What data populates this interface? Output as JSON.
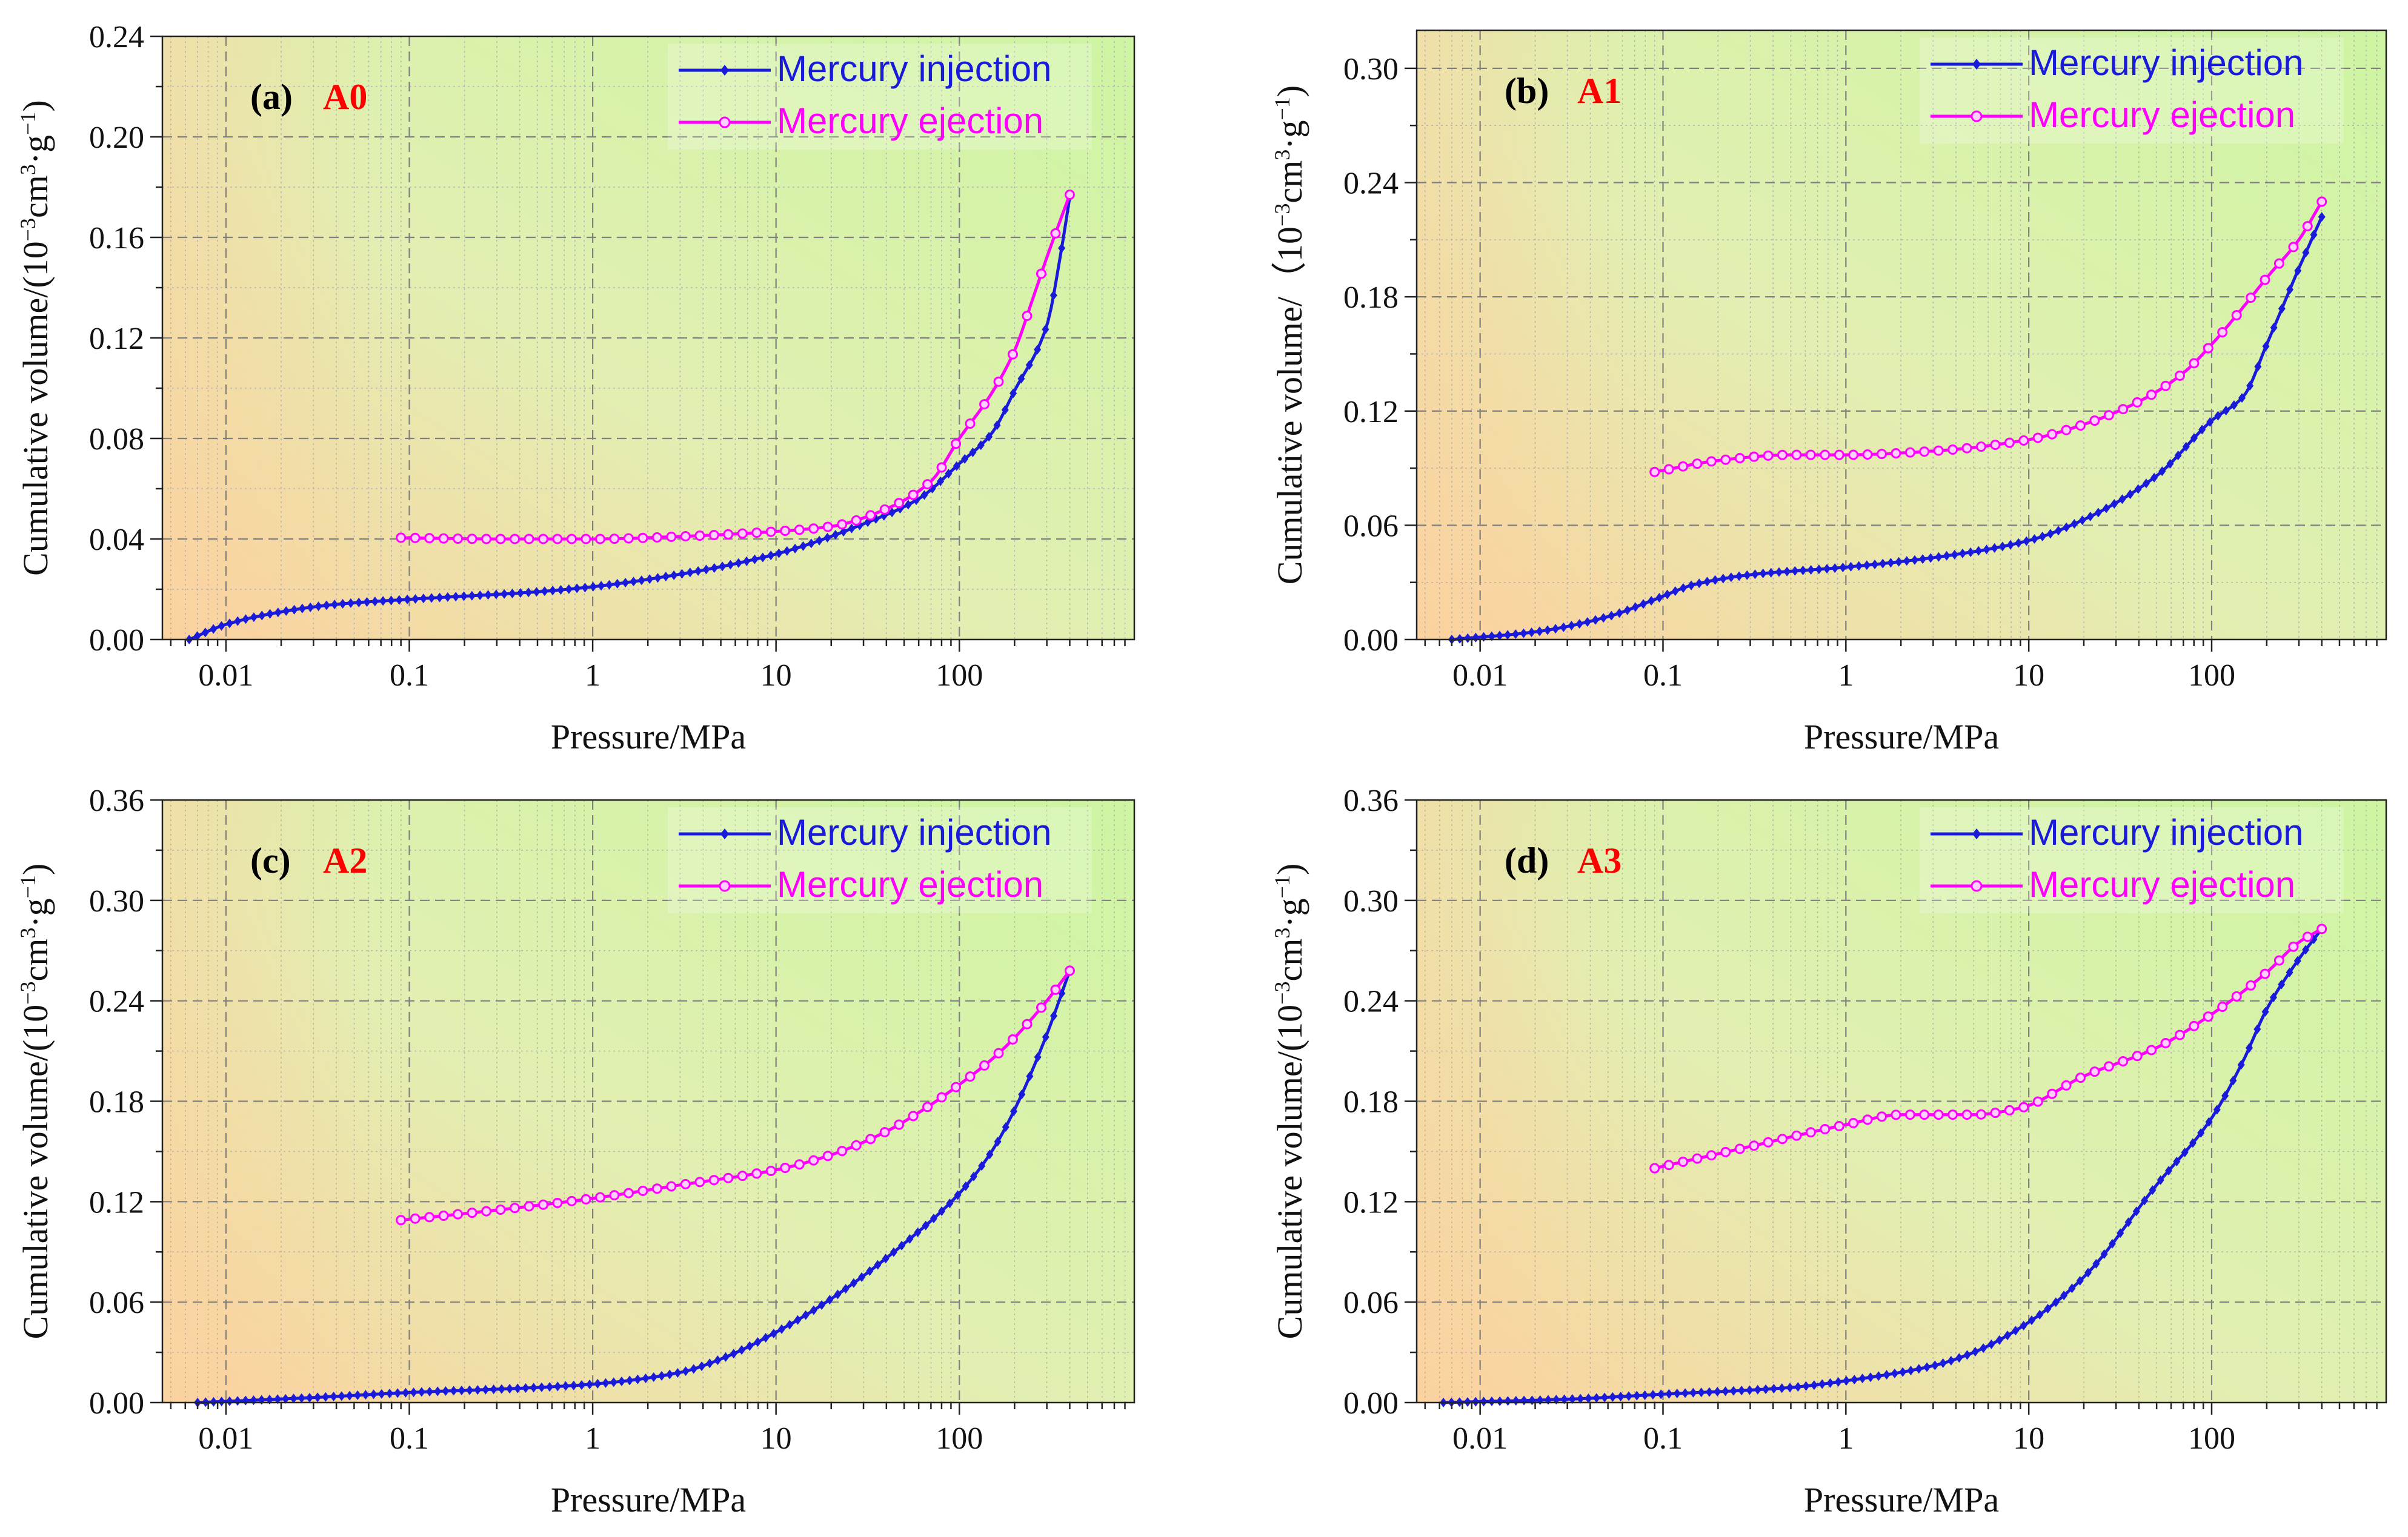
{
  "figure": {
    "panel_ids": [
      "a",
      "b",
      "c",
      "d"
    ]
  },
  "chart_data": [
    {
      "id": "a",
      "type": "line",
      "panel_letter": "(a)",
      "sample": "A0",
      "xlabel": "Pressure/MPa",
      "ylabel": "Cumulative volume/(10⁻³cm³·g⁻¹)",
      "xscale": "log",
      "xlim": [
        0.0045,
        900
      ],
      "ylim": [
        0,
        0.24
      ],
      "xticks": [
        0.01,
        0.1,
        1,
        10,
        100
      ],
      "xtick_labels": [
        "0.01",
        "0.1",
        "1",
        "10",
        "100"
      ],
      "yticks": [
        0,
        0.04,
        0.08,
        0.12,
        0.16,
        0.2,
        0.24
      ],
      "ytick_labels": [
        "0.00",
        "0.04",
        "0.08",
        "0.12",
        "0.16",
        "0.20",
        "0.24"
      ],
      "grid": true,
      "legend_position": "top-right",
      "series": [
        {
          "name": "Mercury injection",
          "color": "#1a1adb",
          "marker": "diamond",
          "points": 110,
          "x": [
            0.0063,
            0.01,
            0.02,
            0.04,
            0.1,
            0.5,
            1,
            3,
            10,
            30,
            60,
            100,
            150,
            200,
            300,
            360,
            400
          ],
          "y": [
            0.0,
            0.006,
            0.011,
            0.014,
            0.016,
            0.019,
            0.021,
            0.026,
            0.034,
            0.046,
            0.056,
            0.07,
            0.082,
            0.099,
            0.125,
            0.155,
            0.176
          ]
        },
        {
          "name": "Mercury ejection",
          "color": "#ff00ff",
          "marker": "circle",
          "points": 48,
          "x": [
            0.09,
            0.3,
            1,
            3,
            10,
            20,
            40,
            70,
            100,
            150,
            200,
            250,
            300,
            400
          ],
          "y": [
            0.0405,
            0.04,
            0.04,
            0.041,
            0.043,
            0.045,
            0.052,
            0.063,
            0.08,
            0.098,
            0.115,
            0.135,
            0.152,
            0.177
          ]
        }
      ]
    },
    {
      "id": "b",
      "type": "line",
      "panel_letter": "(b)",
      "sample": "A1",
      "xlabel": "Pressure/MPa",
      "ylabel": "Cumulative volume/（10⁻³cm³·g⁻¹)",
      "xscale": "log",
      "xlim": [
        0.0045,
        900
      ],
      "ylim": [
        0,
        0.32
      ],
      "xticks": [
        0.01,
        0.1,
        1,
        10,
        100
      ],
      "xtick_labels": [
        "0.01",
        "0.1",
        "1",
        "10",
        "100"
      ],
      "yticks": [
        0,
        0.06,
        0.12,
        0.18,
        0.24,
        0.3
      ],
      "ytick_labels": [
        "0.00",
        "0.06",
        "0.12",
        "0.18",
        "0.24",
        "0.30"
      ],
      "grid": true,
      "legend_position": "top-right",
      "series": [
        {
          "name": "Mercury injection",
          "color": "#1a1adb",
          "marker": "diamond",
          "points": 110,
          "x": [
            0.007,
            0.02,
            0.05,
            0.09,
            0.15,
            0.3,
            1,
            3,
            10,
            20,
            50,
            100,
            150,
            200,
            300,
            400
          ],
          "y": [
            0.0,
            0.004,
            0.012,
            0.021,
            0.029,
            0.034,
            0.038,
            0.043,
            0.052,
            0.063,
            0.086,
            0.115,
            0.128,
            0.155,
            0.195,
            0.222
          ]
        },
        {
          "name": "Mercury ejection",
          "color": "#ff00ff",
          "marker": "circle",
          "points": 48,
          "x": [
            0.09,
            0.2,
            0.5,
            1,
            3,
            10,
            20,
            40,
            70,
            100,
            150,
            200,
            300,
            400
          ],
          "y": [
            0.088,
            0.094,
            0.097,
            0.097,
            0.099,
            0.105,
            0.113,
            0.125,
            0.14,
            0.155,
            0.175,
            0.19,
            0.21,
            0.23
          ]
        }
      ]
    },
    {
      "id": "c",
      "type": "line",
      "panel_letter": "(c)",
      "sample": "A2",
      "xlabel": "Pressure/MPa",
      "ylabel": "Cumulative volume/(10⁻³cm³·g⁻¹)",
      "xscale": "log",
      "xlim": [
        0.0045,
        900
      ],
      "ylim": [
        0,
        0.36
      ],
      "xticks": [
        0.01,
        0.1,
        1,
        10,
        100
      ],
      "xtick_labels": [
        "0.01",
        "0.1",
        "1",
        "10",
        "100"
      ],
      "yticks": [
        0,
        0.06,
        0.12,
        0.18,
        0.24,
        0.3,
        0.36
      ],
      "ytick_labels": [
        "0.00",
        "0.06",
        "0.12",
        "0.18",
        "0.24",
        "0.30",
        "0.36"
      ],
      "grid": true,
      "legend_position": "top-right",
      "series": [
        {
          "name": "Mercury injection",
          "color": "#1a1adb",
          "marker": "diamond",
          "points": 110,
          "x": [
            0.007,
            0.03,
            0.1,
            0.5,
            1,
            3,
            5,
            10,
            20,
            50,
            100,
            150,
            200,
            300,
            400
          ],
          "y": [
            0.0,
            0.003,
            0.006,
            0.009,
            0.011,
            0.018,
            0.026,
            0.042,
            0.062,
            0.095,
            0.125,
            0.15,
            0.175,
            0.22,
            0.258
          ]
        },
        {
          "name": "Mercury ejection",
          "color": "#ff00ff",
          "marker": "circle",
          "points": 48,
          "x": [
            0.09,
            0.3,
            1,
            3,
            10,
            20,
            40,
            70,
            100,
            150,
            200,
            300,
            400
          ],
          "y": [
            0.109,
            0.115,
            0.122,
            0.13,
            0.139,
            0.148,
            0.162,
            0.178,
            0.19,
            0.205,
            0.218,
            0.24,
            0.258
          ]
        }
      ]
    },
    {
      "id": "d",
      "type": "line",
      "panel_letter": "(d)",
      "sample": "A3",
      "xlabel": "Pressure/MPa",
      "ylabel": "Cumulative volume/(10⁻³cm³·g⁻¹)",
      "xscale": "log",
      "xlim": [
        0.0045,
        900
      ],
      "ylim": [
        0,
        0.36
      ],
      "xticks": [
        0.01,
        0.1,
        1,
        10,
        100
      ],
      "xtick_labels": [
        "0.01",
        "0.1",
        "1",
        "10",
        "100"
      ],
      "yticks": [
        0,
        0.06,
        0.12,
        0.18,
        0.24,
        0.3,
        0.36
      ],
      "ytick_labels": [
        "0.00",
        "0.06",
        "0.12",
        "0.18",
        "0.24",
        "0.30",
        "0.36"
      ],
      "grid": true,
      "legend_position": "top-right",
      "series": [
        {
          "name": "Mercury injection",
          "color": "#1a1adb",
          "marker": "diamond",
          "points": 110,
          "x": [
            0.0063,
            0.03,
            0.1,
            0.5,
            1,
            3,
            5,
            10,
            20,
            50,
            100,
            150,
            200,
            300,
            400
          ],
          "y": [
            0.0,
            0.002,
            0.005,
            0.009,
            0.013,
            0.022,
            0.03,
            0.048,
            0.075,
            0.13,
            0.17,
            0.205,
            0.235,
            0.265,
            0.283
          ]
        },
        {
          "name": "Mercury ejection",
          "color": "#ff00ff",
          "marker": "circle",
          "points": 48,
          "x": [
            0.09,
            0.3,
            1,
            2,
            5,
            9,
            20,
            50,
            100,
            200,
            300,
            400
          ],
          "y": [
            0.14,
            0.153,
            0.166,
            0.172,
            0.172,
            0.176,
            0.195,
            0.212,
            0.232,
            0.257,
            0.275,
            0.283
          ]
        }
      ]
    }
  ]
}
